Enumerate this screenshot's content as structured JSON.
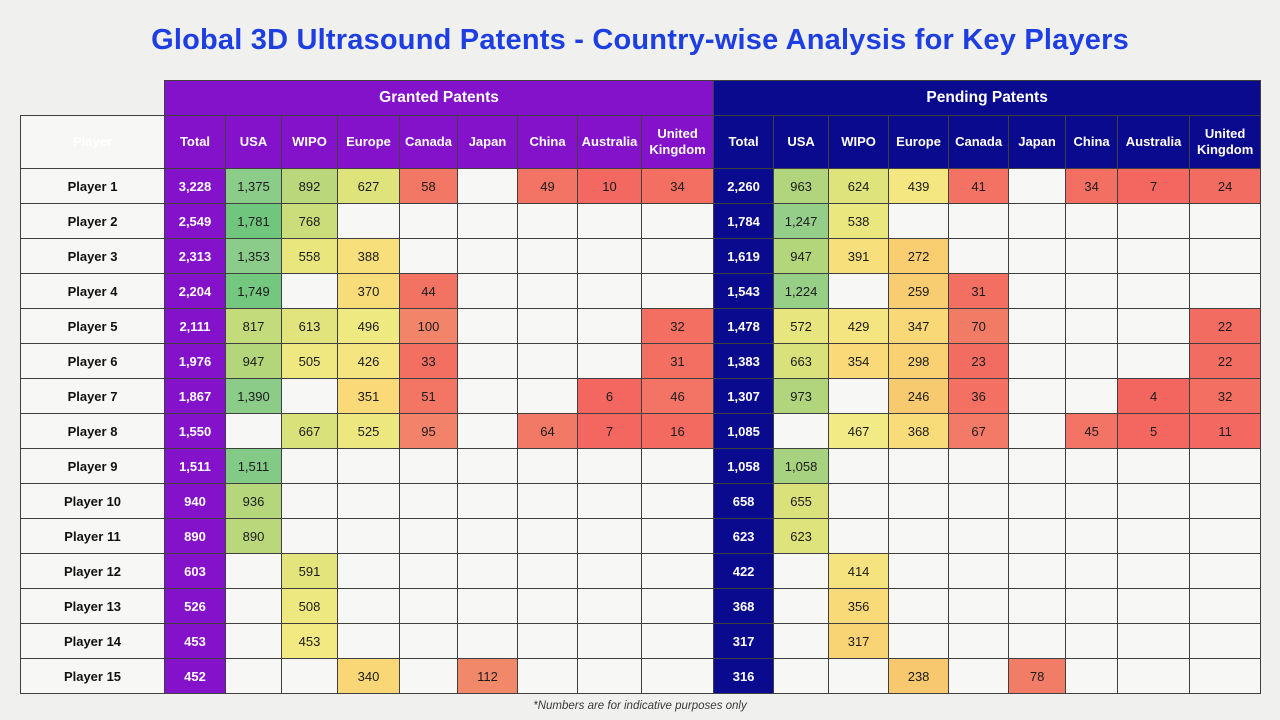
{
  "title": "Global 3D Ultrasound Patents - Country-wise Analysis for Key Players",
  "footnote": "*Numbers are for indicative purposes only",
  "chart_data": {
    "type": "heatmap-table",
    "player_header": "Player",
    "groups": [
      {
        "label": "Granted Patents",
        "color": "#8312ca"
      },
      {
        "label": "Pending Patents",
        "color": "#0a0a8e"
      }
    ],
    "columns": [
      "Total",
      "USA",
      "WIPO",
      "Europe",
      "Canada",
      "Japan",
      "China",
      "Australia",
      "United Kingdom"
    ],
    "rows": [
      {
        "player": "Player 1",
        "granted": [
          3228,
          1375,
          892,
          627,
          58,
          null,
          49,
          10,
          34
        ],
        "pending": [
          2260,
          963,
          624,
          439,
          41,
          null,
          34,
          7,
          24
        ]
      },
      {
        "player": "Player 2",
        "granted": [
          2549,
          1781,
          768,
          null,
          null,
          null,
          null,
          null,
          null
        ],
        "pending": [
          1784,
          1247,
          538,
          null,
          null,
          null,
          null,
          null,
          null
        ]
      },
      {
        "player": "Player 3",
        "granted": [
          2313,
          1353,
          558,
          388,
          null,
          null,
          null,
          null,
          null
        ],
        "pending": [
          1619,
          947,
          391,
          272,
          null,
          null,
          null,
          null,
          null
        ]
      },
      {
        "player": "Player 4",
        "granted": [
          2204,
          1749,
          null,
          370,
          44,
          null,
          null,
          null,
          null
        ],
        "pending": [
          1543,
          1224,
          null,
          259,
          31,
          null,
          null,
          null,
          null
        ]
      },
      {
        "player": "Player 5",
        "granted": [
          2111,
          817,
          613,
          496,
          100,
          null,
          null,
          null,
          32
        ],
        "pending": [
          1478,
          572,
          429,
          347,
          70,
          null,
          null,
          null,
          22
        ]
      },
      {
        "player": "Player 6",
        "granted": [
          1976,
          947,
          505,
          426,
          33,
          null,
          null,
          null,
          31
        ],
        "pending": [
          1383,
          663,
          354,
          298,
          23,
          null,
          null,
          null,
          22
        ]
      },
      {
        "player": "Player 7",
        "granted": [
          1867,
          1390,
          null,
          351,
          51,
          null,
          null,
          6,
          46
        ],
        "pending": [
          1307,
          973,
          null,
          246,
          36,
          null,
          null,
          4,
          32
        ]
      },
      {
        "player": "Player 8",
        "granted": [
          1550,
          null,
          667,
          525,
          95,
          null,
          64,
          7,
          16
        ],
        "pending": [
          1085,
          null,
          467,
          368,
          67,
          null,
          45,
          5,
          11
        ]
      },
      {
        "player": "Player 9",
        "granted": [
          1511,
          1511,
          null,
          null,
          null,
          null,
          null,
          null,
          null
        ],
        "pending": [
          1058,
          1058,
          null,
          null,
          null,
          null,
          null,
          null,
          null
        ]
      },
      {
        "player": "Player 10",
        "granted": [
          940,
          936,
          null,
          null,
          null,
          null,
          null,
          null,
          null
        ],
        "pending": [
          658,
          655,
          null,
          null,
          null,
          null,
          null,
          null,
          null
        ]
      },
      {
        "player": "Player 11",
        "granted": [
          890,
          890,
          null,
          null,
          null,
          null,
          null,
          null,
          null
        ],
        "pending": [
          623,
          623,
          null,
          null,
          null,
          null,
          null,
          null,
          null
        ]
      },
      {
        "player": "Player 12",
        "granted": [
          603,
          null,
          591,
          null,
          null,
          null,
          null,
          null,
          null
        ],
        "pending": [
          422,
          null,
          414,
          null,
          null,
          null,
          null,
          null,
          null
        ]
      },
      {
        "player": "Player 13",
        "granted": [
          526,
          null,
          508,
          null,
          null,
          null,
          null,
          null,
          null
        ],
        "pending": [
          368,
          null,
          356,
          null,
          null,
          null,
          null,
          null,
          null
        ]
      },
      {
        "player": "Player 14",
        "granted": [
          453,
          null,
          453,
          null,
          null,
          null,
          null,
          null,
          null
        ],
        "pending": [
          317,
          null,
          317,
          null,
          null,
          null,
          null,
          null,
          null
        ]
      },
      {
        "player": "Player 15",
        "granted": [
          452,
          null,
          null,
          340,
          null,
          112,
          null,
          null,
          null
        ],
        "pending": [
          316,
          null,
          null,
          238,
          null,
          78,
          null,
          null,
          null
        ]
      }
    ],
    "heat_stops": [
      [
        0,
        "#f3655f"
      ],
      [
        120,
        "#f28a6b"
      ],
      [
        240,
        "#f8c96e"
      ],
      [
        345,
        "#f9d877"
      ],
      [
        460,
        "#f3ea84"
      ],
      [
        560,
        "#e9e67d"
      ],
      [
        680,
        "#d6e07a"
      ],
      [
        820,
        "#c3db7a"
      ],
      [
        990,
        "#aed47c"
      ],
      [
        1300,
        "#90cd8b"
      ],
      [
        1550,
        "#7fca84"
      ],
      [
        1800,
        "#70c67d"
      ]
    ]
  }
}
